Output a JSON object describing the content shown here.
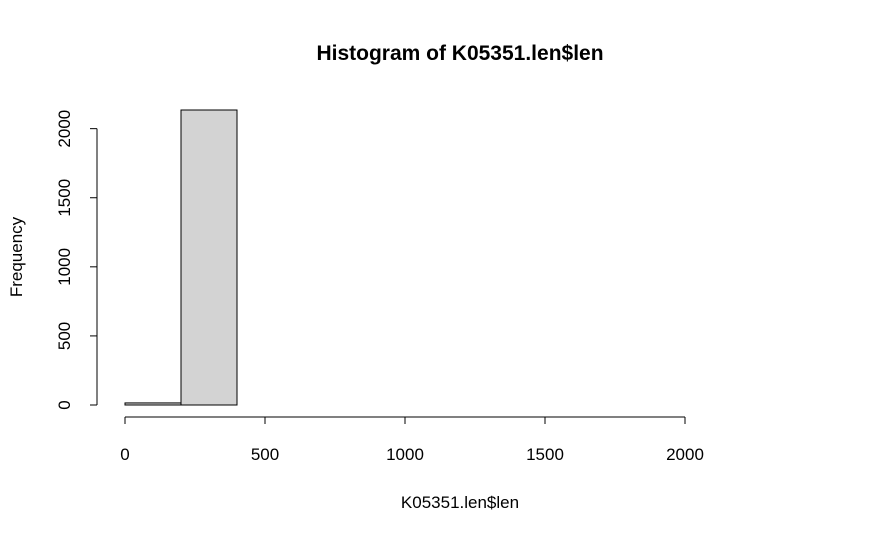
{
  "chart_data": {
    "type": "bar",
    "title": "Histogram of K05351.len$len",
    "xlabel": "K05351.len$len",
    "ylabel": "Frequency",
    "bins": [
      {
        "start": 0,
        "end": 200,
        "count": 15
      },
      {
        "start": 200,
        "end": 400,
        "count": 2135
      },
      {
        "start": 400,
        "end": 600,
        "count": 0
      },
      {
        "start": 600,
        "end": 800,
        "count": 0
      },
      {
        "start": 800,
        "end": 1000,
        "count": 0
      },
      {
        "start": 1000,
        "end": 1200,
        "count": 0
      },
      {
        "start": 1200,
        "end": 1400,
        "count": 0
      },
      {
        "start": 1400,
        "end": 1600,
        "count": 0
      },
      {
        "start": 1600,
        "end": 1800,
        "count": 0
      },
      {
        "start": 1800,
        "end": 2000,
        "count": 0
      },
      {
        "start": 2000,
        "end": 2200,
        "count": 0
      },
      {
        "start": 2200,
        "end": 2400,
        "count": 0
      }
    ],
    "x_ticks": [
      0,
      500,
      1000,
      1500,
      2000
    ],
    "y_ticks": [
      0,
      500,
      1000,
      1500,
      2000
    ],
    "xlim": [
      0,
      2400
    ],
    "ylim": [
      0,
      2135
    ],
    "bar_fill": "#d3d3d3",
    "bar_stroke": "#000000",
    "grid": false,
    "legend": "none"
  }
}
